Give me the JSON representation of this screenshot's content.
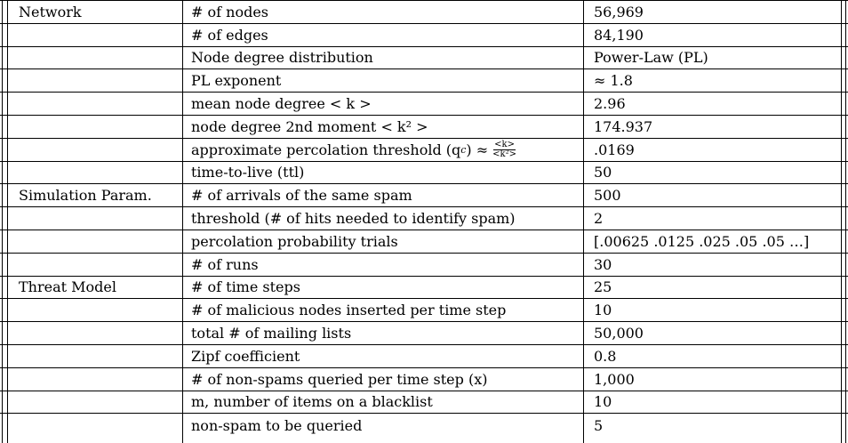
{
  "rows": [
    {
      "section": "Network",
      "param": "# of nodes",
      "value": "56,969"
    },
    {
      "section": "",
      "param": "# of edges",
      "value": "84,190"
    },
    {
      "section": "",
      "param": "Node degree distribution",
      "value": "Power-Law (PL)"
    },
    {
      "section": "",
      "param": "PL exponent",
      "value": "≈ 1.8"
    },
    {
      "section": "",
      "param": "mean node degree < k >",
      "value": "2.96"
    },
    {
      "section": "",
      "param": "node degree 2nd moment < k² >",
      "value": "174.937"
    },
    {
      "section": "",
      "param": "approximate percolation threshold (q",
      "param_sub": "c",
      "param_tail": ") ≈",
      "frac_num": "<k>",
      "frac_den": "<k²>",
      "value": ".0169"
    },
    {
      "section": "",
      "param": "time-to-live (ttl)",
      "value": "50"
    },
    {
      "section": "Simulation Param.",
      "param": "# of arrivals of the same spam",
      "value": "500"
    },
    {
      "section": "",
      "param": "threshold (# of hits needed to identify spam)",
      "value": "2"
    },
    {
      "section": "",
      "param": "percolation probability trials",
      "value": "[.00625 .0125 .025 .05 .05 …]"
    },
    {
      "section": "",
      "param": "# of runs",
      "value": "30"
    },
    {
      "section": "Threat Model",
      "param": "# of time steps",
      "value": "25"
    },
    {
      "section": "",
      "param": "# of malicious nodes inserted per time step",
      "value": "10"
    },
    {
      "section": "",
      "param": "total # of mailing lists",
      "value": "50,000"
    },
    {
      "section": "",
      "param": "Zipf coefficient",
      "value": "0.8"
    },
    {
      "section": "",
      "param": "# of non-spams queried per time step (x)",
      "value": "1,000"
    },
    {
      "section": "",
      "param": "m, number of items on a blacklist",
      "value": "10"
    },
    {
      "section": "",
      "param": " non-spam to be queried",
      "value": "5"
    }
  ]
}
